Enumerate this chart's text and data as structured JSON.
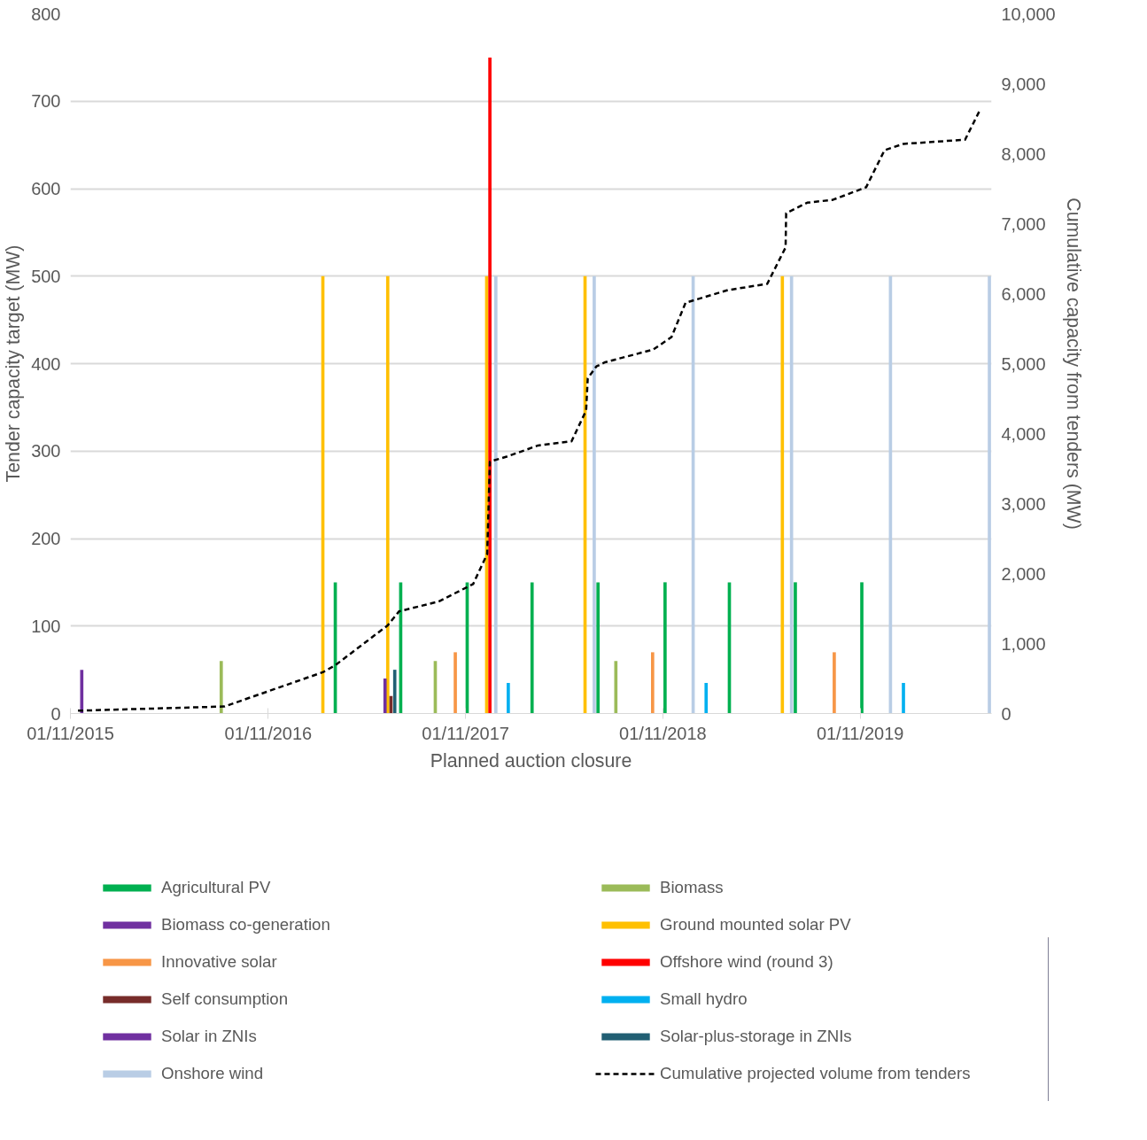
{
  "chart_data": {
    "type": "bar",
    "xlabel": "Planned auction closure",
    "ylabel": "Tender capacity target (MW)",
    "y2label": "Cumulative capacity from tenders (MW)",
    "xlim": [
      "2015-11-01",
      "2020-07-01"
    ],
    "xticks": [
      {
        "value": "2015-11-01",
        "label": "01/11/2015"
      },
      {
        "value": "2016-11-01",
        "label": "01/11/2016"
      },
      {
        "value": "2017-11-01",
        "label": "01/11/2017"
      },
      {
        "value": "2018-11-01",
        "label": "01/11/2018"
      },
      {
        "value": "2019-11-01",
        "label": "01/11/2019"
      }
    ],
    "ylim": [
      0,
      800
    ],
    "yticks": [
      0,
      100,
      200,
      300,
      400,
      500,
      600,
      700,
      800
    ],
    "y2lim": [
      0,
      10000
    ],
    "y2ticks": [
      0,
      {
        "value": 1000,
        "label": "1,000"
      },
      {
        "value": 2000,
        "label": "2,000"
      },
      {
        "value": 3000,
        "label": "3,000"
      },
      {
        "value": 4000,
        "label": "4,000"
      },
      {
        "value": 5000,
        "label": "5,000"
      },
      {
        "value": 6000,
        "label": "6,000"
      },
      {
        "value": 7000,
        "label": "7,000"
      },
      {
        "value": 8000,
        "label": "8,000"
      },
      {
        "value": 9000,
        "label": "9,000"
      },
      {
        "value": 10000,
        "label": "10,000"
      }
    ],
    "grid": "y",
    "legend": "bottom",
    "series": [
      {
        "name": "Agricultural PV",
        "color": "#00b050",
        "x": [
          "2017-03-05",
          "2017-07-04",
          "2017-11-04",
          "2018-03-04",
          "2018-07-04",
          "2018-11-05",
          "2019-03-04",
          "2019-07-04",
          "2019-11-04"
        ],
        "values": [
          150,
          150,
          150,
          150,
          150,
          150,
          150,
          150,
          150
        ]
      },
      {
        "name": "Biomass",
        "color": "#9bbb59",
        "x": [
          "2016-08-06",
          "2017-09-06",
          "2018-08-06"
        ],
        "values": [
          60,
          60,
          60
        ]
      },
      {
        "name": "Biomass co-generation",
        "color": "#7030a0",
        "x": [
          "2015-11-22"
        ],
        "values": [
          50
        ]
      },
      {
        "name": "Ground mounted solar PV",
        "color": "#ffc000",
        "x": [
          "2017-02-10",
          "2017-06-10",
          "2017-12-10",
          "2018-06-10",
          "2019-06-10"
        ],
        "values": [
          500,
          500,
          500,
          500,
          500
        ]
      },
      {
        "name": "Innovative solar",
        "color": "#f79646",
        "x": [
          "2017-10-13",
          "2018-10-13",
          "2019-09-14"
        ],
        "values": [
          70,
          70,
          70
        ]
      },
      {
        "name": "Offshore wind (round 3)",
        "color": "#ff0000",
        "x": [
          "2017-12-16"
        ],
        "values": [
          750
        ]
      },
      {
        "name": "Self consumption",
        "color": "#772c2a",
        "x": [
          "2017-06-16"
        ],
        "values": [
          20
        ]
      },
      {
        "name": "Small hydro",
        "color": "#00b0f0",
        "x": [
          "2018-01-19",
          "2019-01-20",
          "2020-01-20"
        ],
        "values": [
          35,
          35,
          35
        ]
      },
      {
        "name": "Solar in ZNIs",
        "color": "#7030a0",
        "x": [
          "2017-06-05"
        ],
        "values": [
          40
        ]
      },
      {
        "name": "Solar-plus-storage in ZNIs",
        "color": "#215f73",
        "x": [
          "2017-06-23"
        ],
        "values": [
          50
        ]
      },
      {
        "name": "Onshore wind",
        "color": "#b9cde5",
        "x": [
          "2017-12-27",
          "2018-06-27",
          "2018-12-27",
          "2019-06-27",
          "2019-12-27",
          "2020-06-27"
        ],
        "values": [
          500,
          500,
          500,
          500,
          500,
          500
        ]
      },
      {
        "name": "Cumulative projected volume from tenders",
        "type": "line",
        "axis": "y2",
        "color": "#000000",
        "line_style": "dashed",
        "marker": "none",
        "x": [
          "2015-11-15",
          "2016-08-12",
          "2017-02-10",
          "2017-03-05",
          "2017-06-10",
          "2017-07-01",
          "2017-09-12",
          "2017-11-15",
          "2017-12-11",
          "2017-12-16",
          "2018-01-16",
          "2018-03-15",
          "2018-05-16",
          "2018-06-12",
          "2018-06-15",
          "2018-07-01",
          "2018-07-17",
          "2018-10-14",
          "2018-11-17",
          "2018-12-13",
          "2019-03-01",
          "2019-05-13",
          "2019-06-16",
          "2019-06-17",
          "2019-07-26",
          "2019-09-11",
          "2019-11-12",
          "2019-12-16",
          "2020-01-20",
          "2020-05-13",
          "2020-06-10"
        ],
        "values": [
          40,
          100,
          590,
          690,
          1260,
          1460,
          1600,
          1850,
          2280,
          3600,
          3670,
          3830,
          3890,
          4330,
          4790,
          4960,
          5020,
          5200,
          5380,
          5870,
          6050,
          6140,
          6660,
          7150,
          7300,
          7340,
          7520,
          8050,
          8140,
          8200,
          8630
        ]
      }
    ]
  }
}
